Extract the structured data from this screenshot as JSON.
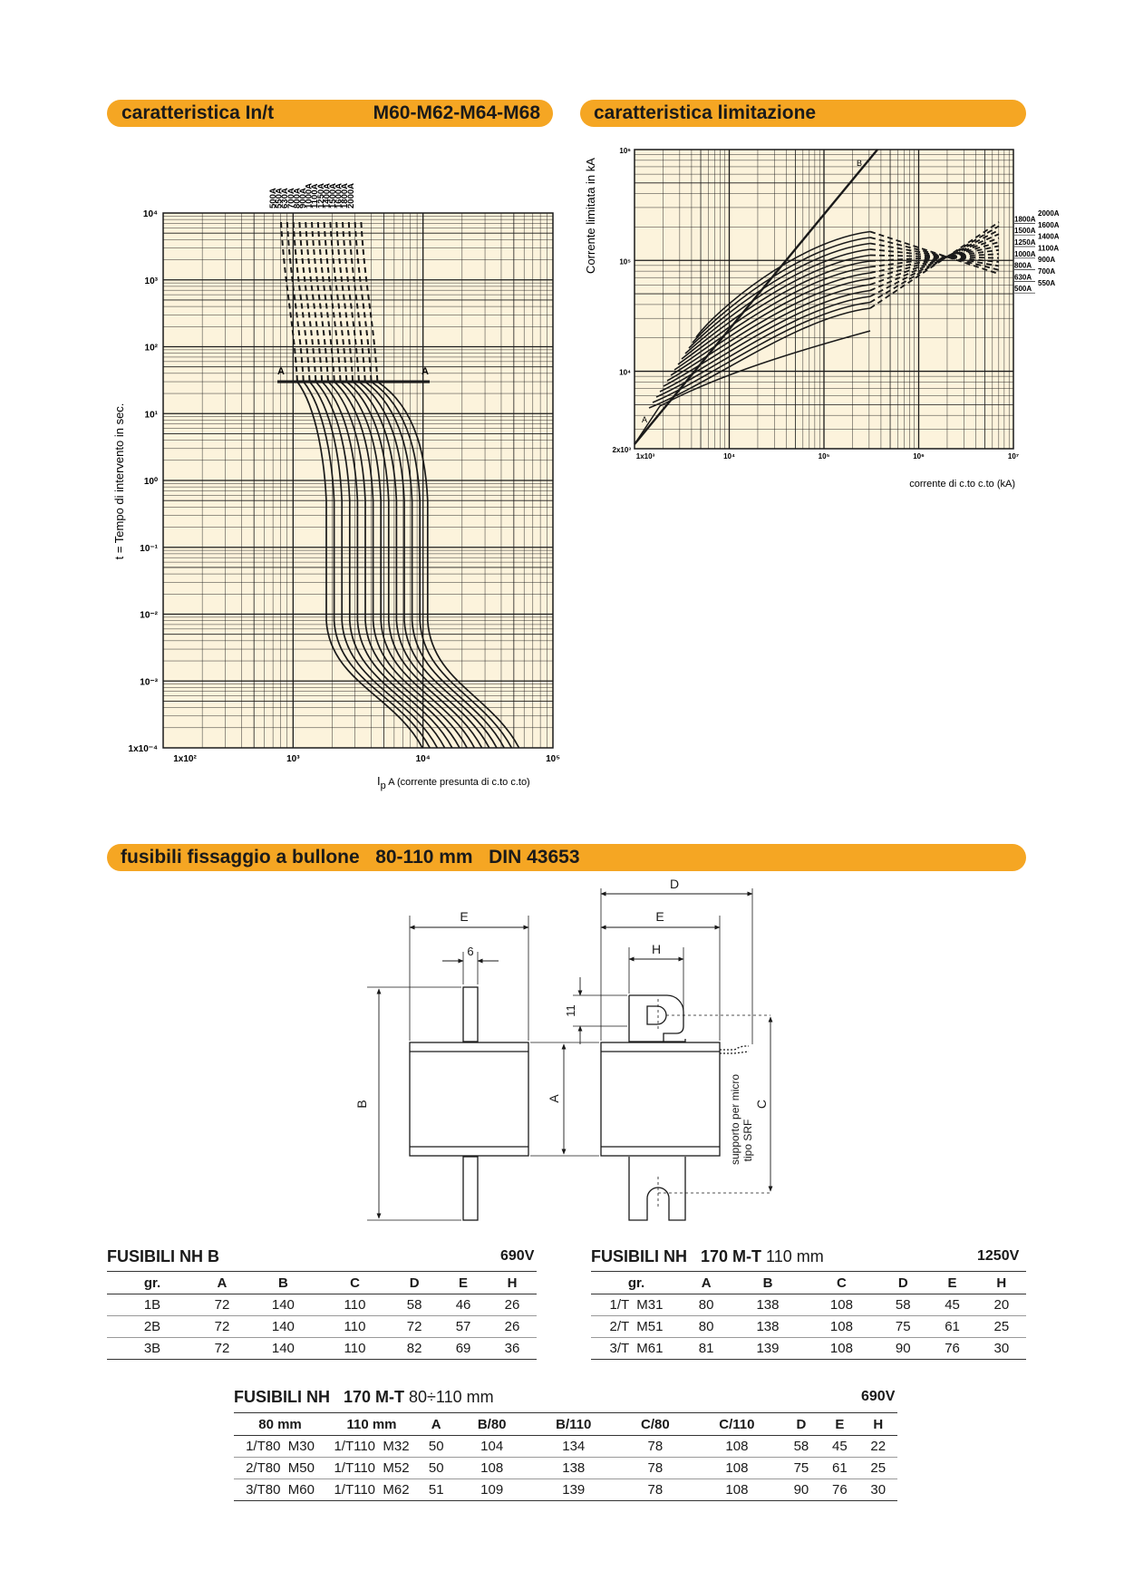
{
  "sections": {
    "curve_title": "caratteristica In/t",
    "curve_models": "M60-M62-M64-M68",
    "limit_title": "caratteristica limitazione",
    "bolt_title": "fusibili fissaggio a bullone   80-110 mm   DIN 43653"
  },
  "chart_data": [
    {
      "type": "line",
      "title": "caratteristica In/t",
      "xlabel": "I",
      "xlabel_sub": "p",
      "xlabel_rest": " A (corrente presunta di c.to c.to)",
      "ylabel": "t = Tempo di intervento in sec.",
      "xscale": "log",
      "yscale": "log",
      "xlim": [
        100,
        100000
      ],
      "ylim": [
        0.0001,
        10000
      ],
      "x_ticks": [
        "1x10²",
        "10³",
        "10⁴",
        "10⁵"
      ],
      "y_ticks": [
        "10⁴",
        "10³",
        "10²",
        "10¹",
        "10⁰",
        "10⁻¹",
        "10⁻²",
        "10⁻³",
        "1x10⁻⁴"
      ],
      "series_labels": [
        "500A",
        "550A",
        "630A",
        "700A",
        "800A",
        "900A",
        "1000A",
        "1100A",
        "1250A",
        "1400A",
        "1500A",
        "1600A",
        "1800A",
        "2000A"
      ],
      "marker_labels": [
        "A",
        "A"
      ],
      "grid": true
    },
    {
      "type": "line",
      "title": "caratteristica limitazione",
      "xlabel": "corrente di c.to c.to (kA)",
      "ylabel": "Corrente limitata in kA",
      "xscale": "log",
      "yscale": "log",
      "xlim": [
        1000,
        10000000
      ],
      "ylim": [
        2000,
        1000000
      ],
      "x_ticks": [
        "1x10³",
        "10⁴",
        "10⁵",
        "10⁶",
        "10⁷"
      ],
      "y_ticks": [
        "10⁶",
        "10⁵",
        "10⁴",
        "2x10³"
      ],
      "series_labels": [
        "2000A",
        "1800A",
        "1600A",
        "1500A",
        "1400A",
        "1250A",
        "1100A",
        "1000A",
        "900A",
        "800A",
        "700A",
        "630A",
        "550A",
        "500A"
      ],
      "marker_labels": [
        "A",
        "B"
      ],
      "grid": true
    }
  ],
  "drawing": {
    "left_labels": [
      "E",
      "6",
      "B"
    ],
    "right_labels": [
      "D",
      "E",
      "H",
      "11",
      "A",
      "C"
    ],
    "note_line1": "supporto per micro",
    "note_line2": "tipo SRF"
  },
  "table_nh_b": {
    "title": "FUSIBILI NH B",
    "voltage": "690V",
    "headers": [
      "gr.",
      "A",
      "B",
      "C",
      "D",
      "E",
      "H"
    ],
    "rows": [
      [
        "1B",
        "72",
        "140",
        "110",
        "58",
        "46",
        "26"
      ],
      [
        "2B",
        "72",
        "140",
        "110",
        "72",
        "57",
        "26"
      ],
      [
        "3B",
        "72",
        "140",
        "110",
        "82",
        "69",
        "36"
      ]
    ]
  },
  "table_170_110": {
    "title": "FUSIBILI NH   170 M-T",
    "subtitle": "110 mm",
    "voltage": "1250V",
    "headers": [
      "gr.",
      "A",
      "B",
      "C",
      "D",
      "E",
      "H"
    ],
    "rows": [
      [
        "1/T  M31",
        "80",
        "138",
        "108",
        "58",
        "45",
        "20"
      ],
      [
        "2/T  M51",
        "80",
        "138",
        "108",
        "75",
        "61",
        "25"
      ],
      [
        "3/T  M61",
        "81",
        "139",
        "108",
        "90",
        "76",
        "30"
      ]
    ]
  },
  "table_170_80_110": {
    "title": "FUSIBILI NH   170 M-T",
    "subtitle": "80÷110 mm",
    "voltage": "690V",
    "headers": [
      "80 mm",
      "110 mm",
      "A",
      "B/80",
      "B/110",
      "C/80",
      "C/110",
      "D",
      "E",
      "H"
    ],
    "rows": [
      [
        "1/T80  M30",
        "1/T110  M32",
        "50",
        "104",
        "134",
        "78",
        "108",
        "58",
        "45",
        "22"
      ],
      [
        "2/T80  M50",
        "1/T110  M52",
        "50",
        "108",
        "138",
        "78",
        "108",
        "75",
        "61",
        "25"
      ],
      [
        "3/T80  M60",
        "1/T110  M62",
        "51",
        "109",
        "139",
        "78",
        "108",
        "90",
        "76",
        "30"
      ]
    ]
  }
}
